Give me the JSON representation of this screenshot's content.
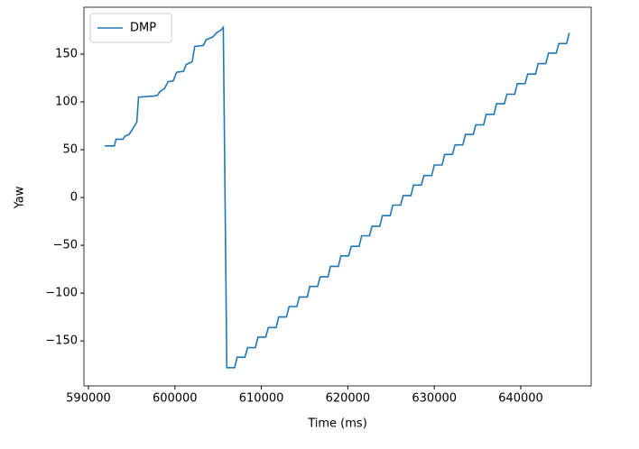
{
  "chart_data": {
    "type": "line",
    "xlabel": "Time (ms)",
    "ylabel": "Yaw",
    "x": [
      591900,
      593000,
      593200,
      594000,
      594200,
      594700,
      595000,
      595400,
      595600,
      595800,
      597500,
      598000,
      598300,
      598800,
      599200,
      599800,
      600200,
      601000,
      601300,
      602000,
      602300,
      603300,
      603600,
      604400,
      604800,
      605300,
      605600,
      606000,
      606900,
      607200,
      608100,
      608400,
      609300,
      609600,
      610500,
      610800,
      611700,
      612000,
      612900,
      613200,
      614100,
      614400,
      615300,
      615600,
      616500,
      616800,
      617700,
      618000,
      618900,
      619200,
      620100,
      620400,
      621300,
      621600,
      622500,
      622800,
      623700,
      624000,
      624900,
      625200,
      626100,
      626400,
      627300,
      627600,
      628500,
      628800,
      629700,
      630000,
      630900,
      631200,
      632100,
      632400,
      633300,
      633600,
      634500,
      634800,
      635700,
      636000,
      636900,
      637200,
      638100,
      638400,
      639300,
      639600,
      640500,
      640800,
      641700,
      642000,
      642900,
      643200,
      644100,
      644400,
      645300,
      645600
    ],
    "series": [
      {
        "name": "DMP",
        "color": "#1f77b4",
        "values": [
          54,
          54,
          61,
          61,
          64,
          66,
          70,
          76,
          79,
          105,
          106,
          107,
          111,
          114,
          121,
          122,
          131,
          132,
          139,
          142,
          158,
          159,
          165,
          168,
          172,
          175,
          178,
          -178,
          -178,
          -167,
          -167,
          -157,
          -157,
          -146,
          -146,
          -136,
          -136,
          -125,
          -125,
          -114,
          -114,
          -104,
          -104,
          -93,
          -93,
          -83,
          -83,
          -72,
          -72,
          -61,
          -61,
          -51,
          -51,
          -40,
          -40,
          -30,
          -30,
          -19,
          -19,
          -8,
          -8,
          2,
          2,
          13,
          13,
          23,
          23,
          34,
          34,
          45,
          45,
          55,
          55,
          66,
          66,
          76,
          76,
          87,
          87,
          98,
          98,
          108,
          108,
          119,
          119,
          129,
          129,
          140,
          140,
          151,
          151,
          161,
          161,
          172
        ]
      }
    ],
    "xlim": [
      589480,
      648140
    ],
    "xticks": [
      590000,
      600000,
      610000,
      620000,
      630000,
      640000
    ],
    "ylim": [
      -197,
      199
    ],
    "yticks": [
      {
        "value": -150,
        "label": "−150"
      },
      {
        "value": -100,
        "label": "−100"
      },
      {
        "value": -50,
        "label": "−50"
      },
      0,
      50,
      100,
      150
    ],
    "legend": "upper left"
  }
}
